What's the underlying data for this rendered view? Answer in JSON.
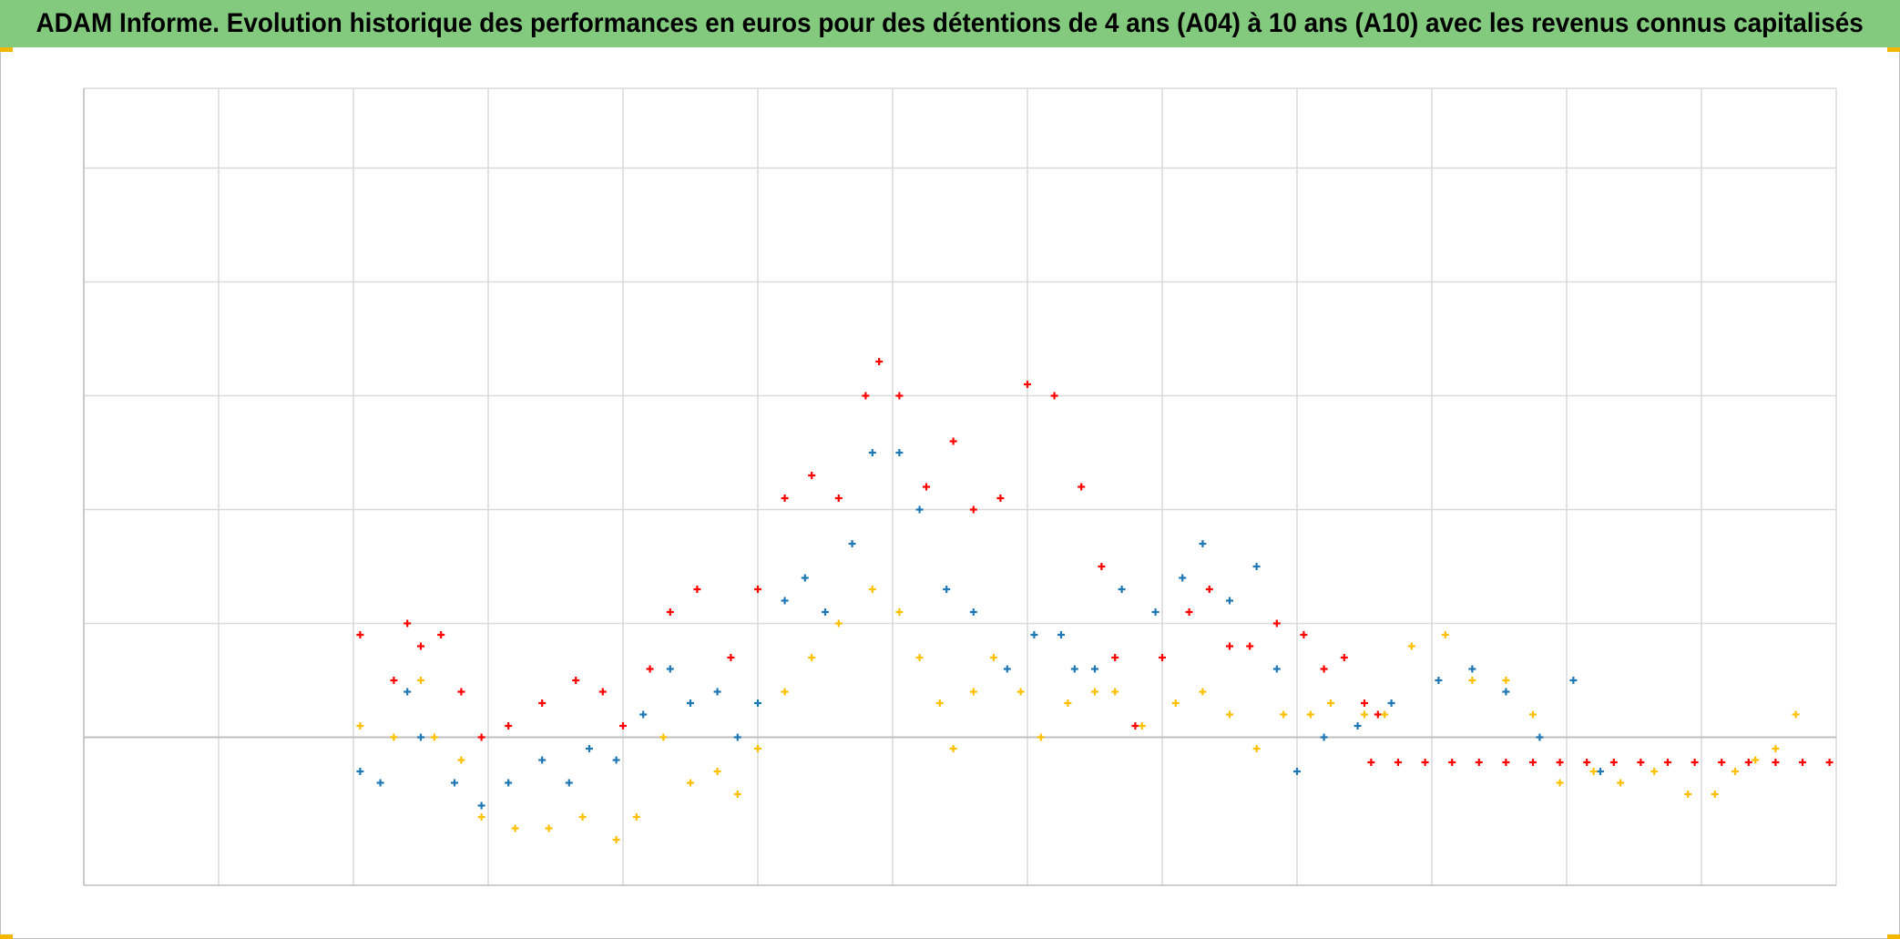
{
  "title": "ADAM Informe. Evolution historique des performances en euros pour des détentions de 4 ans (A04) à 10 ans (A10) avec les revenus connus capitalisés",
  "colors": {
    "title_bar": "#83ca7e",
    "grid": "#d9d9d9",
    "axis": "#bfbfbf",
    "accent_corner": "#f2b705"
  },
  "chart_data": {
    "type": "scatter",
    "title": "ADAM Informe. Evolution historique des performances en euros pour des détentions de 4 ans (A04) à 10 ans (A10) avec les revenus connus capitalisés",
    "xlabel": "",
    "ylabel": "",
    "tick_labels_visible": false,
    "xlim": [
      0,
      13
    ],
    "ylim": [
      -1.3,
      5.7
    ],
    "grid": true,
    "marker": "+",
    "legend": "none",
    "series": [
      {
        "name": "red",
        "color": "#ff0000",
        "values": [
          [
            2.05,
            0.9
          ],
          [
            2.3,
            0.5
          ],
          [
            2.4,
            1.0
          ],
          [
            2.5,
            0.8
          ],
          [
            2.65,
            0.9
          ],
          [
            2.8,
            0.4
          ],
          [
            2.95,
            0.0
          ],
          [
            3.15,
            0.1
          ],
          [
            3.4,
            0.3
          ],
          [
            3.65,
            0.5
          ],
          [
            3.85,
            0.4
          ],
          [
            4.0,
            0.1
          ],
          [
            4.2,
            0.6
          ],
          [
            4.35,
            1.1
          ],
          [
            4.55,
            1.3
          ],
          [
            4.8,
            0.7
          ],
          [
            5.0,
            1.3
          ],
          [
            5.2,
            2.1
          ],
          [
            5.4,
            2.3
          ],
          [
            5.6,
            2.1
          ],
          [
            5.8,
            3.0
          ],
          [
            5.9,
            3.3
          ],
          [
            6.05,
            3.0
          ],
          [
            6.25,
            2.2
          ],
          [
            6.45,
            2.6
          ],
          [
            6.6,
            2.0
          ],
          [
            6.8,
            2.1
          ],
          [
            7.0,
            3.1
          ],
          [
            7.2,
            3.0
          ],
          [
            7.4,
            2.2
          ],
          [
            7.55,
            1.5
          ],
          [
            7.65,
            0.7
          ],
          [
            7.8,
            0.1
          ],
          [
            8.0,
            0.7
          ],
          [
            8.2,
            1.1
          ],
          [
            8.35,
            1.3
          ],
          [
            8.5,
            0.8
          ],
          [
            8.65,
            0.8
          ],
          [
            8.85,
            1.0
          ],
          [
            9.05,
            0.9
          ],
          [
            9.2,
            0.6
          ],
          [
            9.35,
            0.7
          ],
          [
            9.5,
            0.3
          ],
          [
            9.6,
            0.2
          ]
        ]
      },
      {
        "name": "blue",
        "color": "#1f77b4",
        "values": [
          [
            2.05,
            -0.3
          ],
          [
            2.2,
            -0.4
          ],
          [
            2.4,
            0.4
          ],
          [
            2.5,
            0.0
          ],
          [
            2.75,
            -0.4
          ],
          [
            2.95,
            -0.6
          ],
          [
            3.15,
            -0.4
          ],
          [
            3.4,
            -0.2
          ],
          [
            3.6,
            -0.4
          ],
          [
            3.75,
            -0.1
          ],
          [
            3.95,
            -0.2
          ],
          [
            4.15,
            0.2
          ],
          [
            4.35,
            0.6
          ],
          [
            4.5,
            0.3
          ],
          [
            4.7,
            0.4
          ],
          [
            4.85,
            0.0
          ],
          [
            5.0,
            0.3
          ],
          [
            5.2,
            1.2
          ],
          [
            5.35,
            1.4
          ],
          [
            5.5,
            1.1
          ],
          [
            5.7,
            1.7
          ],
          [
            5.85,
            2.5
          ],
          [
            6.05,
            2.5
          ],
          [
            6.2,
            2.0
          ],
          [
            6.4,
            1.3
          ],
          [
            6.6,
            1.1
          ],
          [
            6.85,
            0.6
          ],
          [
            7.05,
            0.9
          ],
          [
            7.25,
            0.9
          ],
          [
            7.35,
            0.6
          ],
          [
            7.5,
            0.6
          ],
          [
            7.7,
            1.3
          ],
          [
            7.95,
            1.1
          ],
          [
            8.15,
            1.4
          ],
          [
            8.3,
            1.7
          ],
          [
            8.5,
            1.2
          ],
          [
            8.7,
            1.5
          ],
          [
            8.85,
            0.6
          ],
          [
            9.0,
            -0.3
          ],
          [
            9.2,
            0.0
          ],
          [
            9.45,
            0.1
          ],
          [
            9.7,
            0.3
          ],
          [
            10.05,
            0.5
          ],
          [
            10.3,
            0.6
          ],
          [
            10.55,
            0.4
          ],
          [
            10.8,
            0.0
          ],
          [
            11.05,
            0.5
          ],
          [
            11.25,
            -0.3
          ]
        ]
      },
      {
        "name": "yellow",
        "color": "#ffc000",
        "values": [
          [
            2.05,
            0.1
          ],
          [
            2.3,
            0.0
          ],
          [
            2.5,
            0.5
          ],
          [
            2.6,
            0.0
          ],
          [
            2.8,
            -0.2
          ],
          [
            2.95,
            -0.7
          ],
          [
            3.2,
            -0.8
          ],
          [
            3.45,
            -0.8
          ],
          [
            3.7,
            -0.7
          ],
          [
            3.95,
            -0.9
          ],
          [
            4.1,
            -0.7
          ],
          [
            4.3,
            0.0
          ],
          [
            4.5,
            -0.4
          ],
          [
            4.7,
            -0.3
          ],
          [
            4.85,
            -0.5
          ],
          [
            5.0,
            -0.1
          ],
          [
            5.2,
            0.4
          ],
          [
            5.4,
            0.7
          ],
          [
            5.6,
            1.0
          ],
          [
            5.85,
            1.3
          ],
          [
            6.05,
            1.1
          ],
          [
            6.2,
            0.7
          ],
          [
            6.35,
            0.3
          ],
          [
            6.45,
            -0.1
          ],
          [
            6.6,
            0.4
          ],
          [
            6.75,
            0.7
          ],
          [
            6.95,
            0.4
          ],
          [
            7.1,
            0.0
          ],
          [
            7.3,
            0.3
          ],
          [
            7.5,
            0.4
          ],
          [
            7.65,
            0.4
          ],
          [
            7.85,
            0.1
          ],
          [
            8.1,
            0.3
          ],
          [
            8.3,
            0.4
          ],
          [
            8.5,
            0.2
          ],
          [
            8.7,
            -0.1
          ],
          [
            8.9,
            0.2
          ],
          [
            9.1,
            0.2
          ],
          [
            9.25,
            0.3
          ],
          [
            9.5,
            0.2
          ],
          [
            9.65,
            0.2
          ],
          [
            9.85,
            0.8
          ],
          [
            10.1,
            0.9
          ],
          [
            10.3,
            0.5
          ],
          [
            10.55,
            0.5
          ],
          [
            10.75,
            0.2
          ],
          [
            10.95,
            -0.4
          ],
          [
            11.2,
            -0.3
          ],
          [
            11.4,
            -0.4
          ],
          [
            11.65,
            -0.3
          ],
          [
            11.9,
            -0.5
          ],
          [
            12.1,
            -0.5
          ],
          [
            12.25,
            -0.3
          ],
          [
            12.4,
            -0.2
          ],
          [
            12.55,
            -0.1
          ],
          [
            12.7,
            0.2
          ]
        ]
      },
      {
        "name": "red-flat",
        "color": "#ff0000",
        "values": [
          [
            9.55,
            -0.22
          ],
          [
            9.75,
            -0.22
          ],
          [
            9.95,
            -0.22
          ],
          [
            10.15,
            -0.22
          ],
          [
            10.35,
            -0.22
          ],
          [
            10.55,
            -0.22
          ],
          [
            10.75,
            -0.22
          ],
          [
            10.95,
            -0.22
          ],
          [
            11.15,
            -0.22
          ],
          [
            11.35,
            -0.22
          ],
          [
            11.55,
            -0.22
          ],
          [
            11.75,
            -0.22
          ],
          [
            11.95,
            -0.22
          ],
          [
            12.15,
            -0.22
          ],
          [
            12.35,
            -0.22
          ],
          [
            12.55,
            -0.22
          ],
          [
            12.75,
            -0.22
          ],
          [
            12.95,
            -0.22
          ]
        ]
      }
    ]
  }
}
